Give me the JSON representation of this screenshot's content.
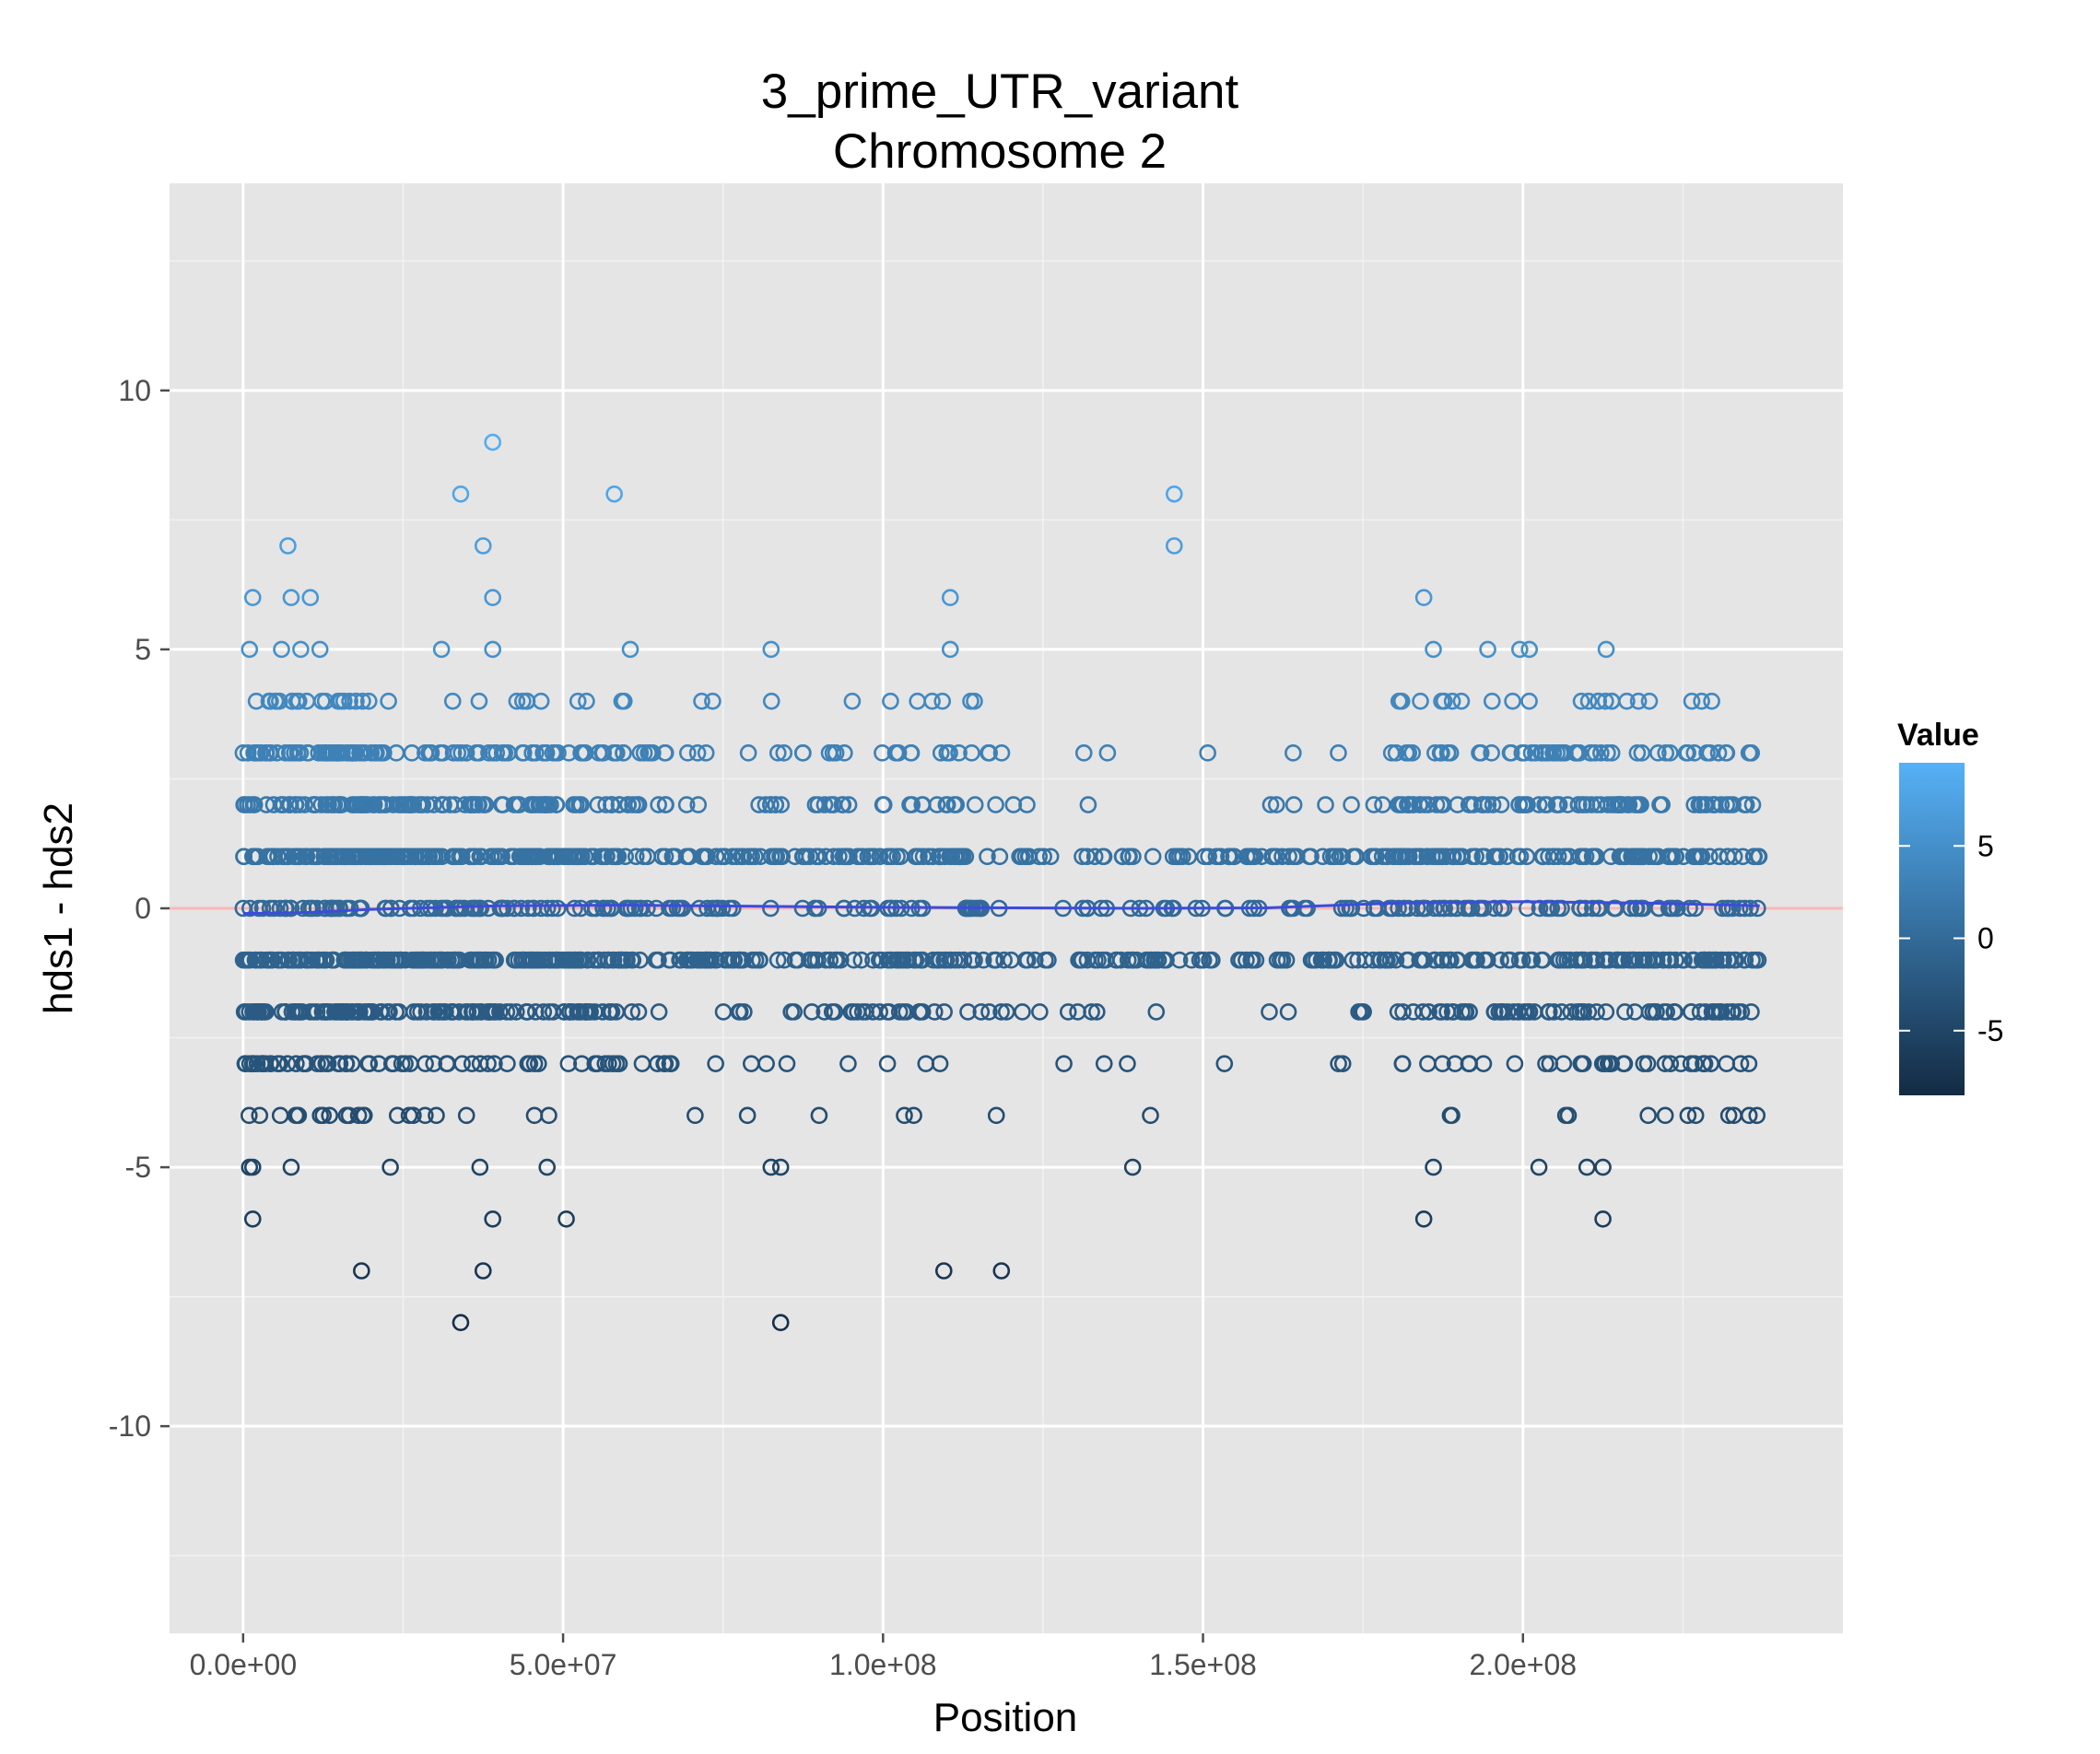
{
  "chart_data": {
    "type": "scatter",
    "title": "3_prime_UTR_variant",
    "subtitle": "Chromosome 2",
    "xlabel": "Position",
    "ylabel": "hds1 - hds2",
    "xlim": [
      -11500000,
      250000000
    ],
    "ylim": [
      -14,
      14
    ],
    "x_ticks": [
      0,
      50000000,
      100000000,
      150000000,
      200000000
    ],
    "x_tick_labels": [
      "0.0e+00",
      "5.0e+07",
      "1.0e+08",
      "1.5e+08",
      "2.0e+08"
    ],
    "y_ticks": [
      -10,
      -5,
      0,
      5,
      10
    ],
    "y_tick_labels": [
      "-10",
      "-5",
      "0",
      "5",
      "10"
    ],
    "grid": true,
    "reference_line": {
      "y": 0,
      "color": "#ffb6b6"
    },
    "trend_line": {
      "color": "#3b4cdb",
      "x": [
        0,
        10000000,
        20000000,
        40000000,
        60000000,
        80000000,
        100000000,
        120000000,
        140000000,
        160000000,
        180000000,
        200000000,
        220000000,
        237000000
      ],
      "y": [
        -0.1,
        -0.08,
        -0.02,
        0.05,
        0.06,
        0.04,
        0.02,
        0.01,
        0.0,
        0.01,
        0.1,
        0.13,
        0.1,
        0.05
      ]
    },
    "legend": {
      "title": "Value",
      "position": "right",
      "range": [
        -8.5,
        9.5
      ],
      "ticks": [
        5,
        0,
        -5
      ],
      "tick_labels": [
        "5",
        "0",
        "-5"
      ],
      "color_low": "#132b43",
      "color_high": "#56b1f7"
    },
    "points_notable": [
      {
        "x": 39000000,
        "y": 9
      },
      {
        "x": 34000000,
        "y": 8
      },
      {
        "x": 58000000,
        "y": 8
      },
      {
        "x": 145500000,
        "y": 8
      },
      {
        "x": 7000000,
        "y": 7
      },
      {
        "x": 37500000,
        "y": 7
      },
      {
        "x": 145500000,
        "y": 7
      },
      {
        "x": 1500000,
        "y": 6
      },
      {
        "x": 7500000,
        "y": 6
      },
      {
        "x": 10500000,
        "y": 6
      },
      {
        "x": 39000000,
        "y": 6
      },
      {
        "x": 110500000,
        "y": 6
      },
      {
        "x": 184500000,
        "y": 6
      },
      {
        "x": 1000000,
        "y": 5
      },
      {
        "x": 6000000,
        "y": 5
      },
      {
        "x": 9000000,
        "y": 5
      },
      {
        "x": 12000000,
        "y": 5
      },
      {
        "x": 31000000,
        "y": 5
      },
      {
        "x": 39000000,
        "y": 5
      },
      {
        "x": 60500000,
        "y": 5
      },
      {
        "x": 82500000,
        "y": 5
      },
      {
        "x": 110500000,
        "y": 5
      },
      {
        "x": 186000000,
        "y": 5
      },
      {
        "x": 194500000,
        "y": 5
      },
      {
        "x": 199500000,
        "y": 5
      },
      {
        "x": 201000000,
        "y": 5
      },
      {
        "x": 213000000,
        "y": 5
      },
      {
        "x": 1000000,
        "y": -5
      },
      {
        "x": 1500000,
        "y": -5
      },
      {
        "x": 7500000,
        "y": -5
      },
      {
        "x": 23000000,
        "y": -5
      },
      {
        "x": 37000000,
        "y": -5
      },
      {
        "x": 47500000,
        "y": -5
      },
      {
        "x": 82500000,
        "y": -5
      },
      {
        "x": 84000000,
        "y": -5
      },
      {
        "x": 139000000,
        "y": -5
      },
      {
        "x": 186000000,
        "y": -5
      },
      {
        "x": 202500000,
        "y": -5
      },
      {
        "x": 210000000,
        "y": -5
      },
      {
        "x": 212500000,
        "y": -5
      },
      {
        "x": 1500000,
        "y": -6
      },
      {
        "x": 39000000,
        "y": -6
      },
      {
        "x": 50500000,
        "y": -6
      },
      {
        "x": 184500000,
        "y": -6
      },
      {
        "x": 212500000,
        "y": -6
      },
      {
        "x": 18500000,
        "y": -7
      },
      {
        "x": 37500000,
        "y": -7
      },
      {
        "x": 109500000,
        "y": -7
      },
      {
        "x": 118500000,
        "y": -7
      },
      {
        "x": 34000000,
        "y": -8
      },
      {
        "x": 84000000,
        "y": -8
      }
    ],
    "dense_bands": {
      "x_ranges": [
        [
          0,
          20000000
        ],
        [
          20000000,
          60000000
        ],
        [
          60000000,
          120000000
        ],
        [
          120000000,
          180000000
        ],
        [
          180000000,
          237000000
        ]
      ],
      "values": {
        "4": [
          22,
          12,
          10,
          0,
          24
        ],
        "3": [
          50,
          50,
          34,
          6,
          60
        ],
        "2": [
          45,
          70,
          40,
          10,
          80
        ],
        "1": [
          70,
          130,
          95,
          75,
          110
        ],
        "0": [
          35,
          55,
          55,
          35,
          65
        ],
        "-1": [
          70,
          130,
          95,
          75,
          110
        ],
        "-2": [
          55,
          70,
          36,
          12,
          70
        ],
        "-3": [
          38,
          30,
          14,
          6,
          36
        ],
        "-4": [
          14,
          8,
          6,
          1,
          12
        ]
      }
    }
  }
}
